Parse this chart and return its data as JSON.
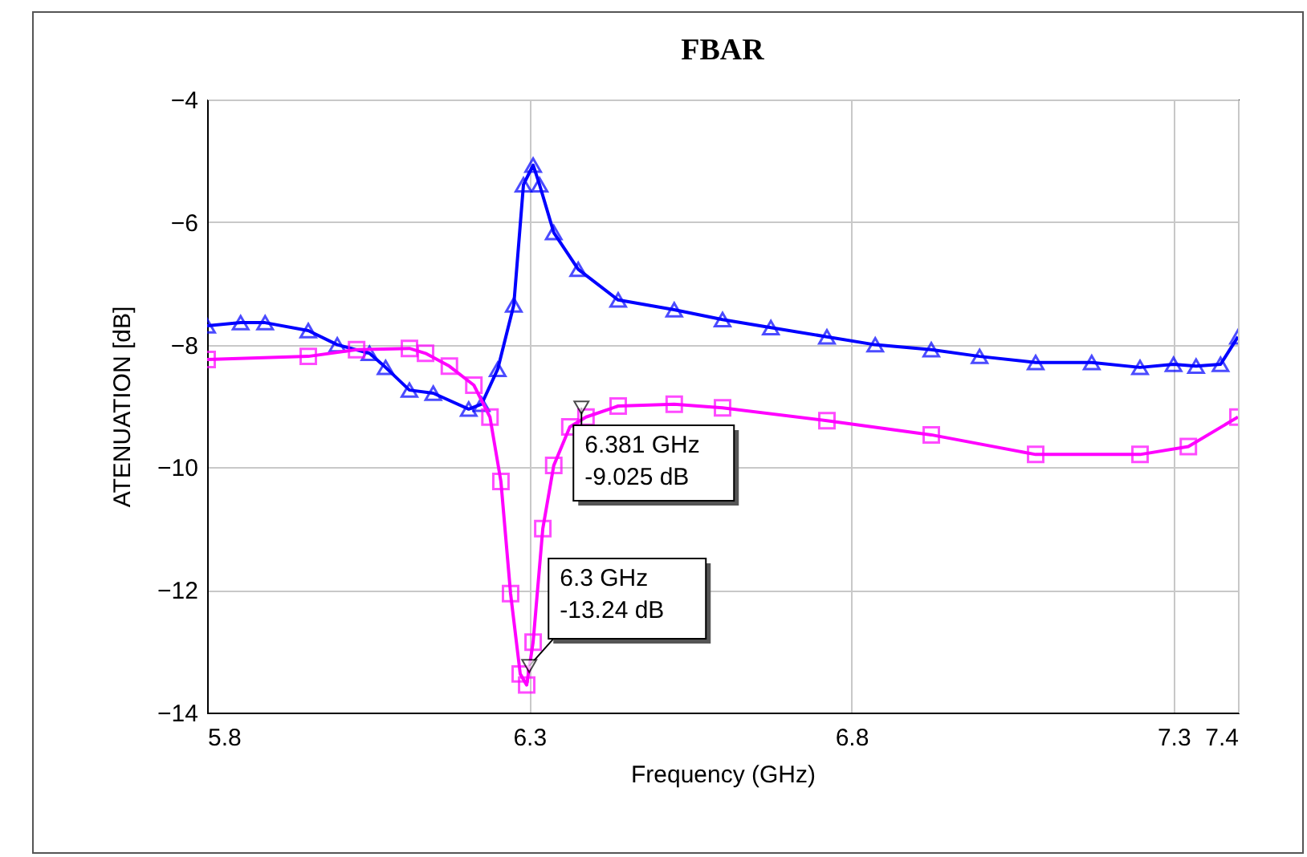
{
  "chart_data": {
    "type": "line",
    "title": "FBAR",
    "xlabel": "Frequency (GHz)",
    "ylabel": "ATENUATION [dB]",
    "xlim": [
      5.8,
      7.4
    ],
    "xticks": [
      5.8,
      6.3,
      6.8,
      7.3,
      7.4
    ],
    "ylim": [
      -14,
      -4
    ],
    "yticks": [
      -14,
      -12,
      -10,
      -8,
      -6,
      -4
    ],
    "grid": true,
    "series": [
      {
        "color": "#0000ff",
        "marker": "triangle",
        "x": [
          5.8,
          5.852,
          5.89,
          5.957,
          6.002,
          6.052,
          6.077,
          6.114,
          6.151,
          6.206,
          6.226,
          6.251,
          6.276,
          6.291,
          6.306,
          6.316,
          6.338,
          6.376,
          6.438,
          6.525,
          6.6,
          6.675,
          6.762,
          6.837,
          6.924,
          6.999,
          7.086,
          7.173,
          7.248,
          7.3,
          7.335,
          7.373,
          7.4
        ],
        "values": [
          -7.69,
          -7.64,
          -7.64,
          -7.77,
          -8.0,
          -8.14,
          -8.37,
          -8.74,
          -8.79,
          -9.05,
          -8.97,
          -8.4,
          -7.35,
          -5.39,
          -5.07,
          -5.39,
          -6.17,
          -6.77,
          -7.27,
          -7.43,
          -7.59,
          -7.72,
          -7.87,
          -8.0,
          -8.08,
          -8.19,
          -8.29,
          -8.29,
          -8.37,
          -8.32,
          -8.35,
          -8.32,
          -7.87
        ]
      },
      {
        "color": "#ff00ff",
        "marker": "square",
        "x": [
          5.8,
          5.957,
          6.032,
          6.114,
          6.139,
          6.176,
          6.214,
          6.239,
          6.256,
          6.271,
          6.286,
          6.296,
          6.306,
          6.321,
          6.338,
          6.363,
          6.388,
          6.438,
          6.525,
          6.6,
          6.762,
          6.924,
          7.086,
          7.248,
          7.323,
          7.4
        ],
        "values": [
          -8.24,
          -8.19,
          -8.08,
          -8.06,
          -8.14,
          -8.35,
          -8.66,
          -9.18,
          -10.23,
          -12.06,
          -13.37,
          -13.55,
          -12.85,
          -11.0,
          -9.97,
          -9.34,
          -9.18,
          -9.0,
          -8.97,
          -9.03,
          -9.24,
          -9.47,
          -9.79,
          -9.79,
          -9.66,
          -9.18
        ]
      }
    ],
    "annotations": [
      {
        "text": "6.381 GHz\n-9.025 dB",
        "x": 6.381,
        "y": -9.025
      },
      {
        "text": "6.3 GHz\n-13.24 dB",
        "x": 6.3,
        "y": -13.24
      }
    ]
  }
}
